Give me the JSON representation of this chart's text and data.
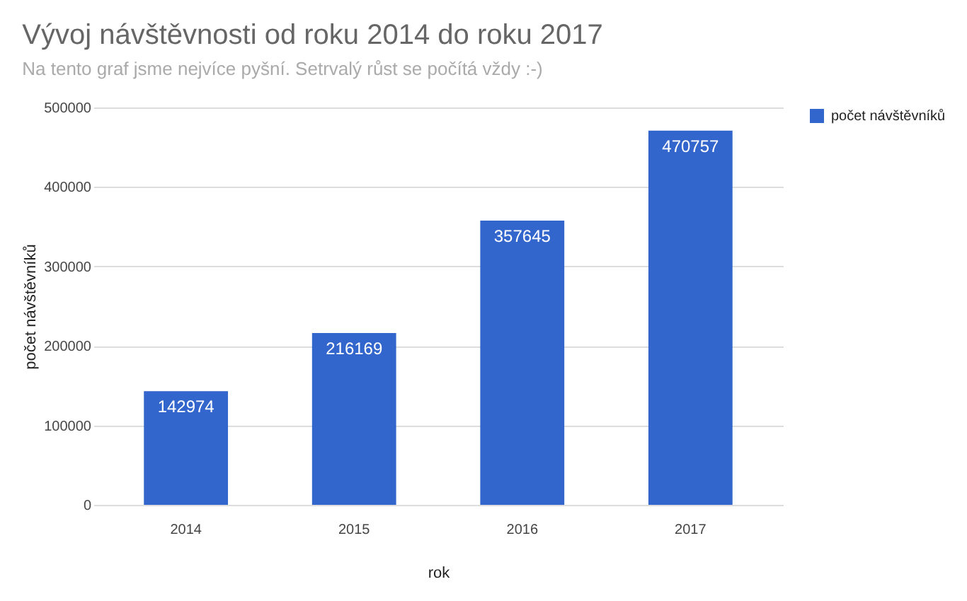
{
  "chart_data": {
    "type": "bar",
    "title": "Vývoj návštěvnosti od roku 2014 do roku 2017",
    "subtitle": "Na tento graf jsme nejvíce pyšní. Setrvalý růst se počítá vždy :-)",
    "xlabel": "rok",
    "ylabel": "počet návštěvníků",
    "categories": [
      "2014",
      "2015",
      "2016",
      "2017"
    ],
    "series": [
      {
        "name": "počet návštěvníků",
        "color": "#3366cc",
        "values": [
          142974,
          216169,
          357645,
          470757
        ]
      }
    ],
    "ylim": [
      0,
      500000
    ],
    "yticks": [
      0,
      100000,
      200000,
      300000,
      400000,
      500000
    ],
    "grid": "y",
    "legend": "right",
    "data_labels": true
  }
}
